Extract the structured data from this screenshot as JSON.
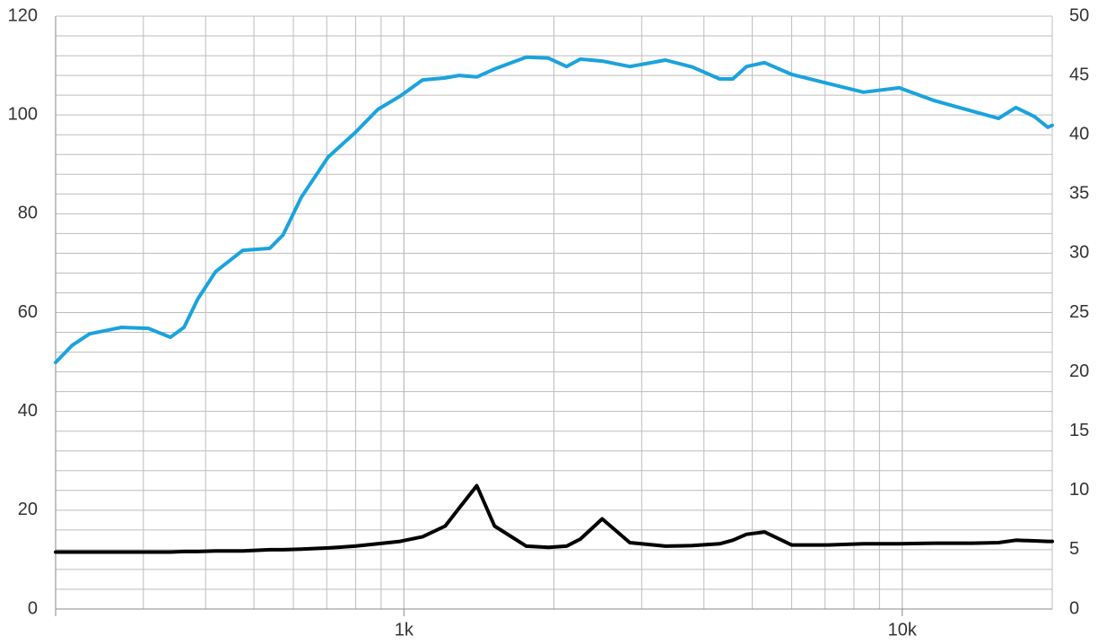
{
  "chart_data": {
    "type": "line",
    "x": [
      200,
      216,
      234,
      271,
      307,
      340,
      362,
      386,
      419,
      475,
      538,
      572,
      622,
      705,
      798,
      886,
      982,
      1090,
      1210,
      1290,
      1400,
      1520,
      1760,
      1950,
      2120,
      2260,
      2500,
      2840,
      3350,
      3790,
      4300,
      4570,
      4870,
      5290,
      6000,
      7080,
      8360,
      9860,
      11600,
      13800,
      15600,
      16900,
      18400,
      19600,
      20000
    ],
    "xscale": "log",
    "xlim": [
      200,
      20000
    ],
    "xticks": [
      {
        "value": 1000,
        "label": "1k"
      },
      {
        "value": 10000,
        "label": "10k"
      }
    ],
    "ylim": [
      0,
      120
    ],
    "yticks": [
      0,
      20,
      40,
      60,
      80,
      100,
      120
    ],
    "y2lim": [
      0,
      50
    ],
    "y2ticks": [
      0,
      5,
      10,
      15,
      20,
      25,
      30,
      35,
      40,
      45,
      50
    ],
    "grid": true,
    "series": [
      {
        "color": "#1ba3dd",
        "values": [
          49.9,
          53.4,
          55.7,
          57.0,
          56.8,
          55.0,
          57.0,
          62.8,
          68.3,
          72.6,
          73.0,
          75.7,
          83.3,
          91.5,
          96.4,
          101.1,
          103.8,
          107.1,
          107.5,
          108.0,
          107.7,
          109.3,
          111.7,
          111.5,
          109.8,
          111.3,
          110.9,
          109.8,
          111.1,
          109.7,
          107.3,
          107.3,
          109.8,
          110.6,
          108.2,
          106.4,
          104.6,
          105.5,
          102.9,
          100.8,
          99.3,
          101.5,
          99.7,
          97.5,
          97.9
        ]
      },
      {
        "color": "#000000",
        "axis": "y2",
        "values": [
          4.8,
          4.8,
          4.8,
          4.8,
          4.8,
          4.8,
          4.85,
          4.85,
          4.9,
          4.9,
          5.0,
          5.0,
          5.05,
          5.15,
          5.3,
          5.5,
          5.7,
          6.1,
          7.0,
          8.5,
          10.4,
          7.0,
          5.3,
          5.2,
          5.3,
          5.9,
          7.6,
          5.6,
          5.3,
          5.35,
          5.5,
          5.8,
          6.3,
          6.5,
          5.4,
          5.4,
          5.5,
          5.5,
          5.55,
          5.55,
          5.6,
          5.8,
          5.75,
          5.7,
          5.7
        ]
      }
    ]
  }
}
